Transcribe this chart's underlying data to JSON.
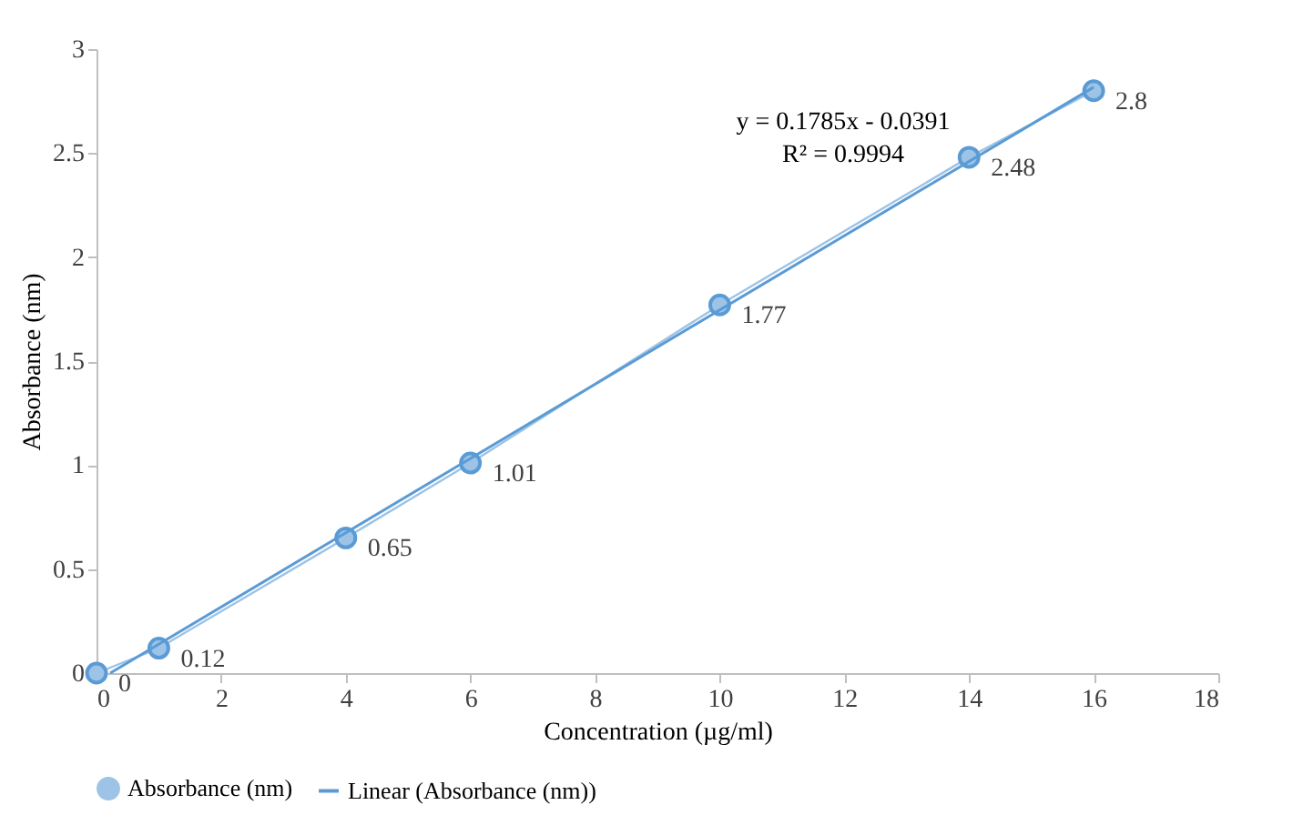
{
  "chart_data": {
    "type": "line",
    "xlabel": "Concentration (µg/ml)",
    "ylabel": "Absorbance (nm)",
    "xlim": [
      0,
      18
    ],
    "xticks": [
      0,
      2,
      4,
      6,
      8,
      10,
      12,
      14,
      16,
      18
    ],
    "ylim": [
      0,
      3
    ],
    "yticks": [
      0,
      0.5,
      1,
      1.5,
      2,
      2.5,
      3
    ],
    "grid": false,
    "legend": "bottom",
    "annotations": [
      "y = 0.1785x - 0.0391",
      "R² = 0.9994"
    ],
    "series": [
      {
        "name": "Absorbance (nm)",
        "marker": "circle",
        "color": "#9dc3e6",
        "x": [
          0,
          1,
          4,
          6,
          10,
          14,
          16
        ],
        "values": [
          0,
          0.12,
          0.65,
          1.01,
          1.77,
          2.48,
          2.8
        ],
        "value_labels": [
          "0",
          "0.12",
          "0.65",
          "1.01",
          "1.77",
          "2.48",
          "2.8"
        ]
      },
      {
        "name": "Linear (Absorbance (nm))",
        "marker": "none",
        "color": "#5b9bd5",
        "x": [
          0.22,
          16
        ],
        "values": [
          0,
          2.817
        ]
      }
    ]
  }
}
